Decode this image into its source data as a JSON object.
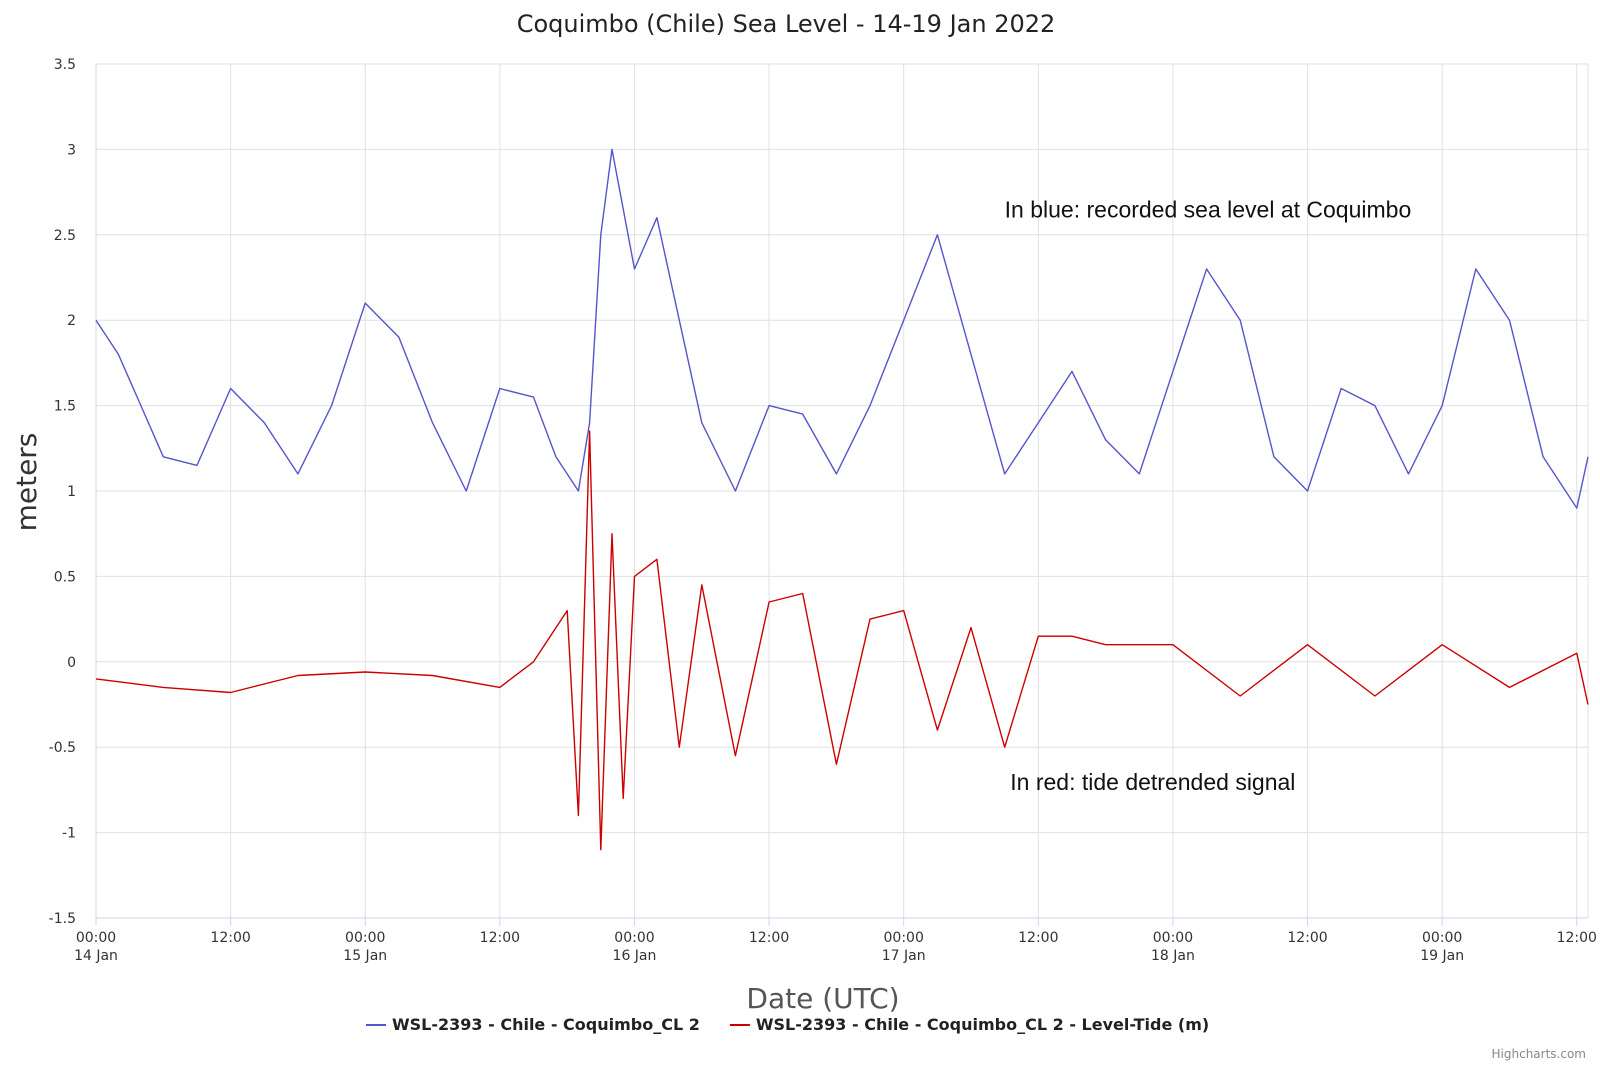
{
  "chart_data": {
    "type": "line",
    "title": "Coquimbo (Chile) Sea Level - 14-19 Jan 2022",
    "xlabel": "Date (UTC)",
    "ylabel": "meters",
    "ylim": [
      -1.5,
      3.5
    ],
    "yticks": [
      3.5,
      3,
      2.5,
      2,
      1.5,
      1,
      0.5,
      0,
      -0.5,
      -1,
      -1.5
    ],
    "xlim": [
      "2022-01-14 00:00",
      "2022-01-19 13:00"
    ],
    "xticks": [
      {
        "value": "2022-01-14 00:00",
        "time": "00:00",
        "date": "14 Jan"
      },
      {
        "value": "2022-01-14 12:00",
        "time": "12:00",
        "date": ""
      },
      {
        "value": "2022-01-15 00:00",
        "time": "00:00",
        "date": "15 Jan"
      },
      {
        "value": "2022-01-15 12:00",
        "time": "12:00",
        "date": ""
      },
      {
        "value": "2022-01-16 00:00",
        "time": "00:00",
        "date": "16 Jan"
      },
      {
        "value": "2022-01-16 12:00",
        "time": "12:00",
        "date": ""
      },
      {
        "value": "2022-01-17 00:00",
        "time": "00:00",
        "date": "17 Jan"
      },
      {
        "value": "2022-01-17 12:00",
        "time": "12:00",
        "date": ""
      },
      {
        "value": "2022-01-18 00:00",
        "time": "00:00",
        "date": "18 Jan"
      },
      {
        "value": "2022-01-18 12:00",
        "time": "12:00",
        "date": ""
      },
      {
        "value": "2022-01-19 00:00",
        "time": "00:00",
        "date": "19 Jan"
      },
      {
        "value": "2022-01-19 12:00",
        "time": "12:00",
        "date": ""
      }
    ],
    "grid": true,
    "legend_position": "bottom-center",
    "series": [
      {
        "name": "WSL-2393 - Chile - Coquimbo_CL 2",
        "color": "#5555cc",
        "x": [
          "2022-01-14 00:00",
          "2022-01-14 02:00",
          "2022-01-14 04:00",
          "2022-01-14 06:00",
          "2022-01-14 09:00",
          "2022-01-14 12:00",
          "2022-01-14 15:00",
          "2022-01-14 18:00",
          "2022-01-14 21:00",
          "2022-01-15 00:00",
          "2022-01-15 03:00",
          "2022-01-15 06:00",
          "2022-01-15 09:00",
          "2022-01-15 12:00",
          "2022-01-15 15:00",
          "2022-01-15 17:00",
          "2022-01-15 19:00",
          "2022-01-15 20:00",
          "2022-01-15 21:00",
          "2022-01-15 22:00",
          "2022-01-16 00:00",
          "2022-01-16 02:00",
          "2022-01-16 04:00",
          "2022-01-16 06:00",
          "2022-01-16 09:00",
          "2022-01-16 12:00",
          "2022-01-16 15:00",
          "2022-01-16 18:00",
          "2022-01-16 21:00",
          "2022-01-17 00:00",
          "2022-01-17 03:00",
          "2022-01-17 06:00",
          "2022-01-17 09:00",
          "2022-01-17 12:00",
          "2022-01-17 15:00",
          "2022-01-17 18:00",
          "2022-01-17 21:00",
          "2022-01-18 00:00",
          "2022-01-18 03:00",
          "2022-01-18 06:00",
          "2022-01-18 09:00",
          "2022-01-18 12:00",
          "2022-01-18 15:00",
          "2022-01-18 18:00",
          "2022-01-18 21:00",
          "2022-01-19 00:00",
          "2022-01-19 03:00",
          "2022-01-19 06:00",
          "2022-01-19 09:00",
          "2022-01-19 12:00",
          "2022-01-19 13:00"
        ],
        "y": [
          2.0,
          1.8,
          1.5,
          1.2,
          1.15,
          1.6,
          1.4,
          1.1,
          1.5,
          2.1,
          1.9,
          1.4,
          1.0,
          1.6,
          1.55,
          1.2,
          1.0,
          1.4,
          2.5,
          3.0,
          2.3,
          2.6,
          2.0,
          1.4,
          1.0,
          1.5,
          1.45,
          1.1,
          1.5,
          2.0,
          2.5,
          1.8,
          1.1,
          1.4,
          1.7,
          1.3,
          1.1,
          1.7,
          2.3,
          2.0,
          1.2,
          1.0,
          1.6,
          1.5,
          1.1,
          1.5,
          2.3,
          2.0,
          1.2,
          0.9,
          1.2
        ]
      },
      {
        "name": "WSL-2393 - Chile - Coquimbo_CL 2 - Level-Tide (m)",
        "color": "#cc0000",
        "x": [
          "2022-01-14 00:00",
          "2022-01-14 06:00",
          "2022-01-14 12:00",
          "2022-01-14 18:00",
          "2022-01-15 00:00",
          "2022-01-15 06:00",
          "2022-01-15 12:00",
          "2022-01-15 15:00",
          "2022-01-15 18:00",
          "2022-01-15 19:00",
          "2022-01-15 20:00",
          "2022-01-15 21:00",
          "2022-01-15 22:00",
          "2022-01-15 23:00",
          "2022-01-16 00:00",
          "2022-01-16 02:00",
          "2022-01-16 04:00",
          "2022-01-16 06:00",
          "2022-01-16 09:00",
          "2022-01-16 12:00",
          "2022-01-16 15:00",
          "2022-01-16 18:00",
          "2022-01-16 21:00",
          "2022-01-17 00:00",
          "2022-01-17 03:00",
          "2022-01-17 06:00",
          "2022-01-17 09:00",
          "2022-01-17 12:00",
          "2022-01-17 15:00",
          "2022-01-17 18:00",
          "2022-01-17 21:00",
          "2022-01-18 00:00",
          "2022-01-18 06:00",
          "2022-01-18 12:00",
          "2022-01-18 18:00",
          "2022-01-19 00:00",
          "2022-01-19 06:00",
          "2022-01-19 12:00",
          "2022-01-19 13:00"
        ],
        "y": [
          -0.1,
          -0.15,
          -0.18,
          -0.08,
          -0.06,
          -0.08,
          -0.15,
          0.0,
          0.3,
          -0.9,
          1.35,
          -1.1,
          0.75,
          -0.8,
          0.5,
          0.6,
          -0.5,
          0.45,
          -0.55,
          0.35,
          0.4,
          -0.6,
          0.25,
          0.3,
          -0.4,
          0.2,
          -0.5,
          0.15,
          0.15,
          0.1,
          0.1,
          0.1,
          -0.2,
          0.1,
          -0.2,
          0.1,
          -0.15,
          0.05,
          -0.25
        ]
      }
    ],
    "annotations": [
      {
        "text": "In blue: recorded sea level at Coquimbo",
        "x": "2022-01-17 09:00",
        "y": 2.6
      },
      {
        "text": "In red: tide detrended signal",
        "x": "2022-01-17 09:30",
        "y": -0.75
      }
    ]
  },
  "credits": "Highcharts.com"
}
